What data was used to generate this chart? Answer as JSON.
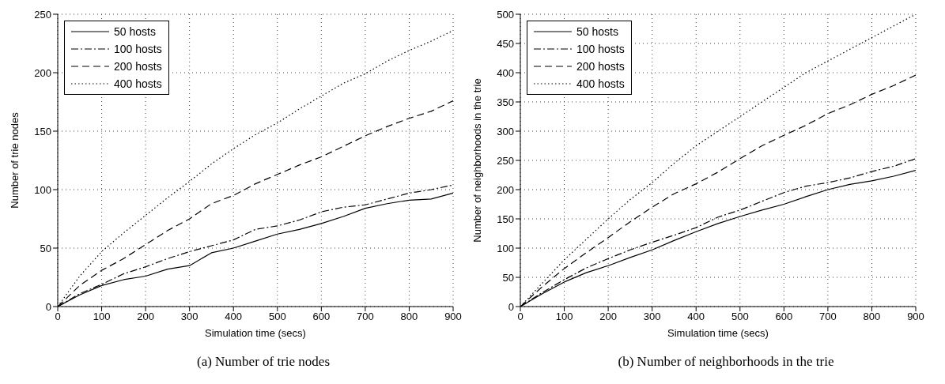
{
  "chart_data": [
    {
      "type": "line",
      "title": "(a) Number of trie nodes",
      "xlabel": "Simulation time (secs)",
      "ylabel": "Number of trie nodes",
      "x": [
        0,
        50,
        100,
        150,
        200,
        250,
        300,
        350,
        400,
        450,
        500,
        550,
        600,
        650,
        700,
        750,
        800,
        850,
        900
      ],
      "xlim": [
        0,
        900
      ],
      "xticks": [
        0,
        100,
        200,
        300,
        400,
        500,
        600,
        700,
        800,
        900
      ],
      "ylim": [
        0,
        250
      ],
      "yticks": [
        0,
        50,
        100,
        150,
        200,
        250
      ],
      "grid": true,
      "legend": "top left",
      "marker": "none",
      "series": [
        {
          "name": "50 hosts",
          "color": "#000000",
          "line_style": "solid",
          "values": [
            0,
            10,
            18,
            23,
            26,
            32,
            35,
            46,
            50,
            56,
            62,
            66,
            71,
            77,
            84,
            88,
            91,
            92,
            97
          ]
        },
        {
          "name": "100 hosts",
          "color": "#000000",
          "line_style": "dashdot",
          "values": [
            0,
            11,
            19,
            28,
            34,
            41,
            47,
            52,
            57,
            66,
            69,
            74,
            81,
            85,
            87,
            92,
            97,
            100,
            104
          ]
        },
        {
          "name": "200 hosts",
          "color": "#000000",
          "line_style": "dashed",
          "values": [
            0,
            18,
            31,
            41,
            53,
            65,
            75,
            88,
            95,
            105,
            113,
            121,
            128,
            137,
            146,
            154,
            161,
            167,
            176
          ]
        },
        {
          "name": "400 hosts",
          "color": "#000000",
          "line_style": "dotted",
          "values": [
            0,
            26,
            47,
            63,
            78,
            93,
            107,
            122,
            135,
            147,
            157,
            169,
            180,
            191,
            199,
            210,
            219,
            227,
            236
          ]
        }
      ]
    },
    {
      "type": "line",
      "title": "(b) Number of neighborhoods in the trie",
      "xlabel": "Simulation time (secs)",
      "ylabel": "Number of neighborhoods in the trie",
      "x": [
        0,
        50,
        100,
        150,
        200,
        250,
        300,
        350,
        400,
        450,
        500,
        550,
        600,
        650,
        700,
        750,
        800,
        850,
        900
      ],
      "xlim": [
        0,
        900
      ],
      "xticks": [
        0,
        100,
        200,
        300,
        400,
        500,
        600,
        700,
        800,
        900
      ],
      "ylim": [
        0,
        500
      ],
      "yticks": [
        0,
        50,
        100,
        150,
        200,
        250,
        300,
        350,
        400,
        450,
        500
      ],
      "grid": true,
      "legend": "top left",
      "marker": "none",
      "series": [
        {
          "name": "50 hosts",
          "color": "#000000",
          "line_style": "solid",
          "values": [
            0,
            22,
            42,
            58,
            70,
            84,
            97,
            113,
            128,
            142,
            154,
            165,
            175,
            188,
            200,
            209,
            215,
            223,
            233
          ]
        },
        {
          "name": "100 hosts",
          "color": "#000000",
          "line_style": "dashdot",
          "values": [
            0,
            24,
            46,
            66,
            82,
            97,
            110,
            122,
            135,
            153,
            165,
            180,
            195,
            206,
            212,
            220,
            231,
            240,
            253
          ]
        },
        {
          "name": "200 hosts",
          "color": "#000000",
          "line_style": "dashed",
          "values": [
            0,
            34,
            65,
            92,
            118,
            145,
            170,
            193,
            210,
            230,
            253,
            275,
            293,
            310,
            330,
            345,
            363,
            378,
            396
          ]
        },
        {
          "name": "400 hosts",
          "color": "#000000",
          "line_style": "dotted",
          "values": [
            0,
            40,
            80,
            115,
            150,
            183,
            212,
            245,
            275,
            300,
            325,
            350,
            375,
            400,
            420,
            440,
            460,
            480,
            500
          ]
        }
      ]
    }
  ]
}
